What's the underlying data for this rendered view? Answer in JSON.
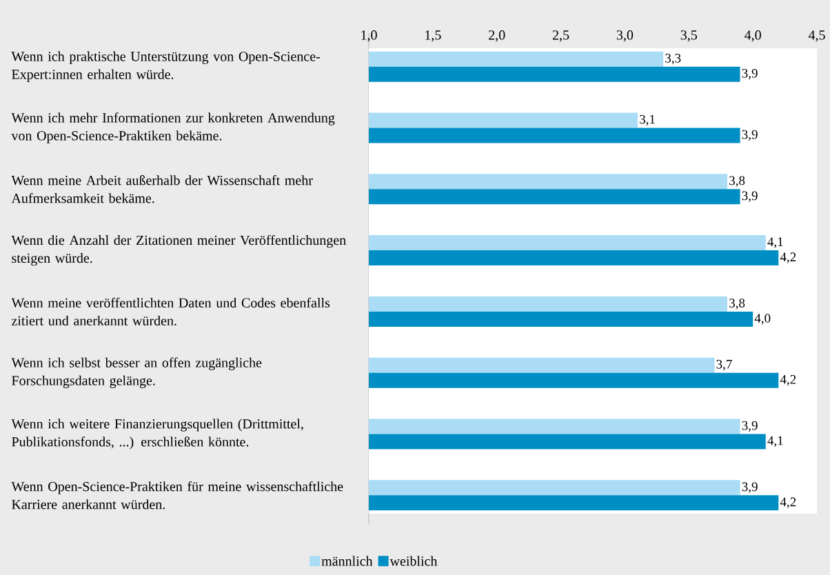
{
  "chart_data": {
    "type": "bar",
    "orientation": "horizontal",
    "categories": [
      "Wenn ich praktische Unterstützung von Open-Science-Expert:innen erhalten würde.",
      "Wenn ich mehr Informationen zur konkreten Anwendung von Open-Science-Praktiken bekäme.",
      "Wenn meine Arbeit außerhalb der Wissenschaft mehr Aufmerksamkeit bekäme.",
      "Wenn die Anzahl der Zitationen meiner Veröffentlichungen steigen würde.",
      "Wenn meine veröffentlichten Daten und Codes ebenfalls zitiert und anerkannt würden.",
      "Wenn ich selbst besser an offen zugängliche Forschungsdaten gelänge.",
      "Wenn ich weitere Finanzierungsquellen (Drittmittel, Publikationsfonds, ...) erschließen könnte.",
      "Wenn Open-Science-Praktiken für meine wissenschaftliche Karriere anerkannt würden."
    ],
    "series": [
      {
        "name": "männlich",
        "color": "#aadcf5",
        "values": [
          3.3,
          3.1,
          3.8,
          4.1,
          3.8,
          3.7,
          3.9,
          3.9
        ],
        "value_labels": [
          "3,3",
          "3,1",
          "3,8",
          "4,1",
          "3,8",
          "3,7",
          "3,9",
          "3,9"
        ]
      },
      {
        "name": "weiblich",
        "color": "#008fc5",
        "values": [
          3.9,
          3.9,
          3.9,
          4.2,
          4.0,
          4.2,
          4.1,
          4.2
        ],
        "value_labels": [
          "3,9",
          "3,9",
          "3,9",
          "4,2",
          "4,0",
          "4,2",
          "4,1",
          "4,2"
        ]
      }
    ],
    "xlim": [
      1.0,
      4.5
    ],
    "xticks": [
      {
        "value": 1.0,
        "label": "1,0"
      },
      {
        "value": 1.5,
        "label": "1,5"
      },
      {
        "value": 2.0,
        "label": "2,0"
      },
      {
        "value": 2.5,
        "label": "2,5"
      },
      {
        "value": 3.0,
        "label": "3,0"
      },
      {
        "value": 3.5,
        "label": "3,5"
      },
      {
        "value": 4.0,
        "label": "4,0"
      },
      {
        "value": 4.5,
        "label": "4,5"
      }
    ],
    "legend": "bottom"
  }
}
